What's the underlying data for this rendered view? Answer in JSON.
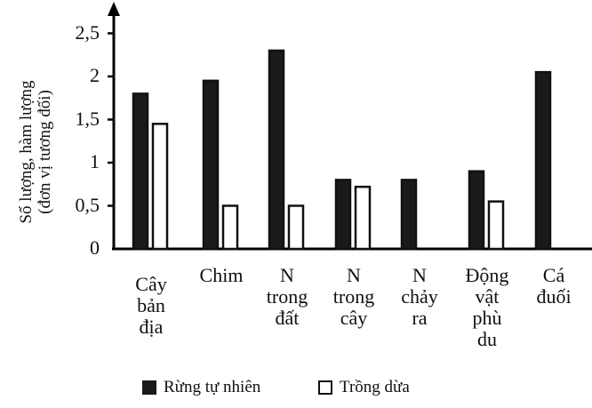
{
  "chart_data": {
    "type": "bar",
    "title": "",
    "xlabel": "",
    "ylabel": "Số lượng, hàm lượng\n(đơn vị tương đối)",
    "ylim": [
      0,
      2.5
    ],
    "yticks": [
      "0",
      "0,5",
      "1",
      "1,5",
      "2",
      "2,5"
    ],
    "categories": [
      "Cây\nbản\nđịa",
      "Chim",
      "N\ntrong\nđất",
      "N\ntrong\ncây",
      "N\nchảy\nra",
      "Động\nvật\nphù\ndu",
      "Cá\nđuối"
    ],
    "series": [
      {
        "name": "Rừng tự nhiên",
        "color": "#1a1a1a",
        "values": [
          1.8,
          1.95,
          2.3,
          0.8,
          0.8,
          0.9,
          2.05
        ]
      },
      {
        "name": "Trồng dừa",
        "color": "#ffffff",
        "values": [
          1.45,
          0.5,
          0.5,
          0.72,
          null,
          0.55,
          null
        ]
      }
    ],
    "grid": false,
    "legend_position": "bottom"
  },
  "legend": {
    "series1": "Rừng tự nhiên",
    "series2": "Trồng dừa"
  }
}
